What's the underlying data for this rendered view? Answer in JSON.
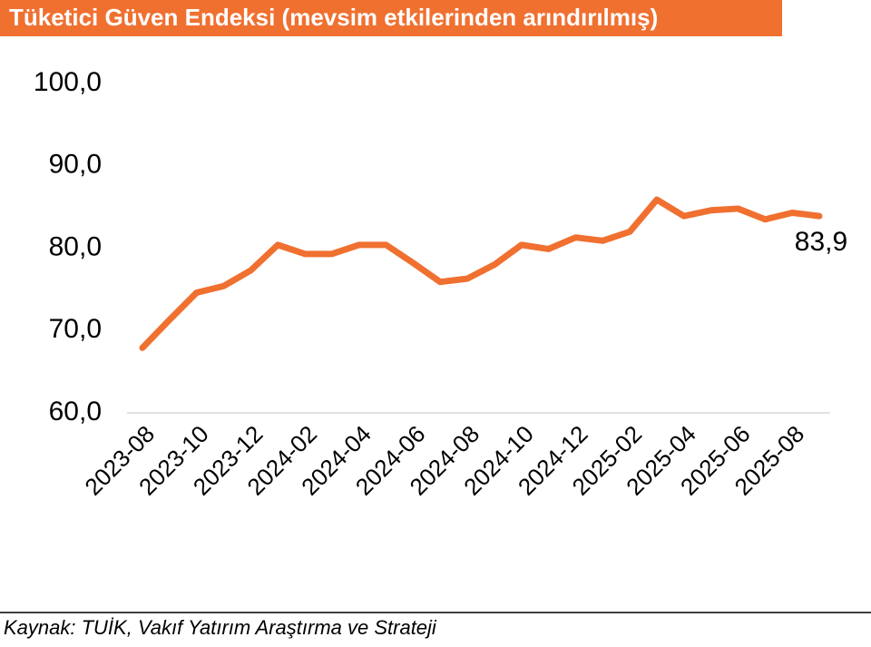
{
  "chart_data": {
    "type": "line",
    "title": "Tüketici Güven Endeksi (mevsim etkilerinden arındırılmış)",
    "source": "Kaynak: TUİK, Vakıf Yatırım Araştırma ve Strateji",
    "categories": [
      "2023-08",
      null,
      "2023-10",
      null,
      "2023-12",
      null,
      "2024-02",
      null,
      "2024-04",
      null,
      "2024-06",
      null,
      "2024-08",
      null,
      "2024-10",
      null,
      "2024-12",
      null,
      "2025-02",
      null,
      "2025-04",
      null,
      "2025-06",
      null,
      "2025-08",
      null
    ],
    "series": [
      {
        "name": "Tüketici Güven Endeksi",
        "color": "#f07030",
        "values": [
          67.9,
          71.3,
          74.6,
          75.4,
          77.3,
          80.4,
          79.3,
          79.3,
          80.4,
          80.4,
          78.2,
          75.9,
          76.3,
          78.0,
          80.4,
          79.9,
          81.3,
          80.9,
          82.0,
          85.9,
          83.9,
          84.6,
          84.8,
          83.5,
          84.3,
          83.9
        ],
        "value_labels": [
          null,
          null,
          null,
          null,
          null,
          null,
          null,
          null,
          null,
          null,
          null,
          null,
          null,
          null,
          null,
          null,
          null,
          null,
          null,
          null,
          null,
          null,
          null,
          null,
          null,
          "83,9"
        ]
      }
    ],
    "ylim": [
      60,
      100
    ],
    "yticks": [
      {
        "value": 60,
        "label": "60,0"
      },
      {
        "value": 70,
        "label": "70,0"
      },
      {
        "value": 80,
        "label": "80,0"
      },
      {
        "value": 90,
        "label": "90,0"
      },
      {
        "value": 100,
        "label": "100,0"
      }
    ],
    "grid": false
  }
}
